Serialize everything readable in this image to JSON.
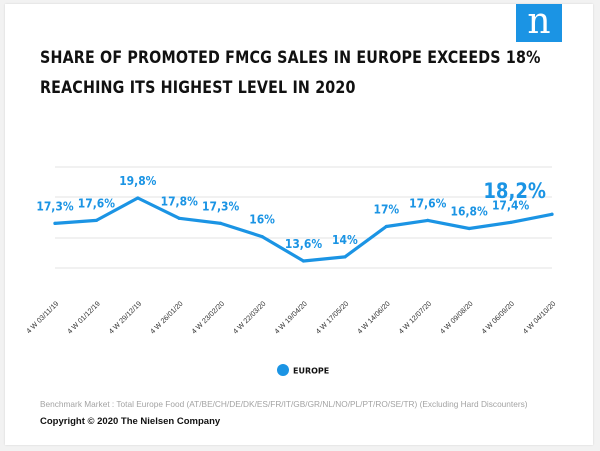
{
  "brand": {
    "logo_letter": "n",
    "color": "#1b94e4"
  },
  "title": {
    "line1": "SHARE OF PROMOTED FMCG SALES IN EUROPE EXCEEDS 18%",
    "line2": "REACHING ITS HIGHEST LEVEL IN 2020"
  },
  "footnote": "Benchmark Market : Total Europe Food (AT/BE/CH/DE/DK/ES/FR/IT/GB/GR/NL/NO/PL/PT/RO/SE/TR) (Excluding Hard Discounters)",
  "copyright": "Copyright © 2020 The Nielsen Company",
  "chart_data": {
    "type": "line",
    "categories": [
      "4 W 03/11/19",
      "4 W 01/12/19",
      "4 W 29/12/19",
      "4 W 26/01/20",
      "4 W 23/02/20",
      "4 W 22/03/20",
      "4 W 19/04/20",
      "4 W 17/05/20",
      "4 W 14/06/20",
      "4 W 12/07/20",
      "4 W 09/08/20",
      "4 W 06/09/20",
      "4 W 04/10/20"
    ],
    "series": [
      {
        "name": "EUROPE",
        "color": "#1b94e4",
        "values": [
          17.3,
          17.6,
          19.8,
          17.8,
          17.3,
          16.0,
          13.6,
          14.0,
          17.0,
          17.6,
          16.8,
          17.4,
          18.2
        ],
        "labels": [
          "17,3%",
          "17,6%",
          "19,8%",
          "17,8%",
          "17,3%",
          "16%",
          "13,6%",
          "14%",
          "17%",
          "17,6%",
          "16,8%",
          "17,4%",
          "18,2%"
        ]
      }
    ],
    "grid": true,
    "legend": "bottom-center"
  }
}
